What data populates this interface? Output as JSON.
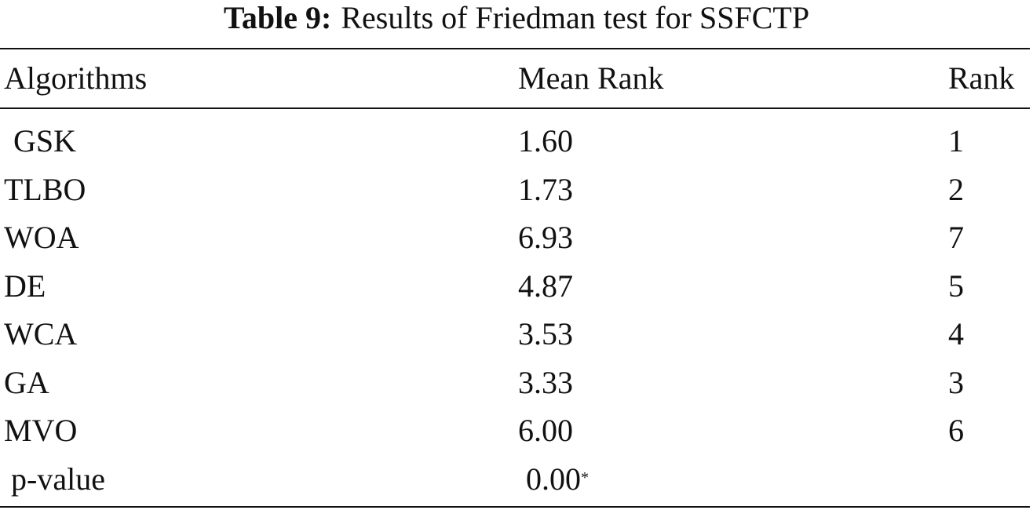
{
  "caption": {
    "label": "Table 9:",
    "text": "Results of Friedman test for SSFCTP"
  },
  "table": {
    "header": [
      "Algorithms",
      "Mean Rank",
      "Rank"
    ],
    "rows": [
      [
        "GSK",
        "1.60",
        "1"
      ],
      [
        "TLBO",
        "1.73",
        "2"
      ],
      [
        "WOA",
        "6.93",
        "7"
      ],
      [
        "DE",
        "4.87",
        "5"
      ],
      [
        "WCA",
        "3.53",
        "4"
      ],
      [
        "GA",
        "3.33",
        "3"
      ],
      [
        "MVO",
        "6.00",
        "6"
      ]
    ],
    "pvalue": {
      "label": "p-value",
      "value": "0.00",
      "marker": "*"
    }
  }
}
